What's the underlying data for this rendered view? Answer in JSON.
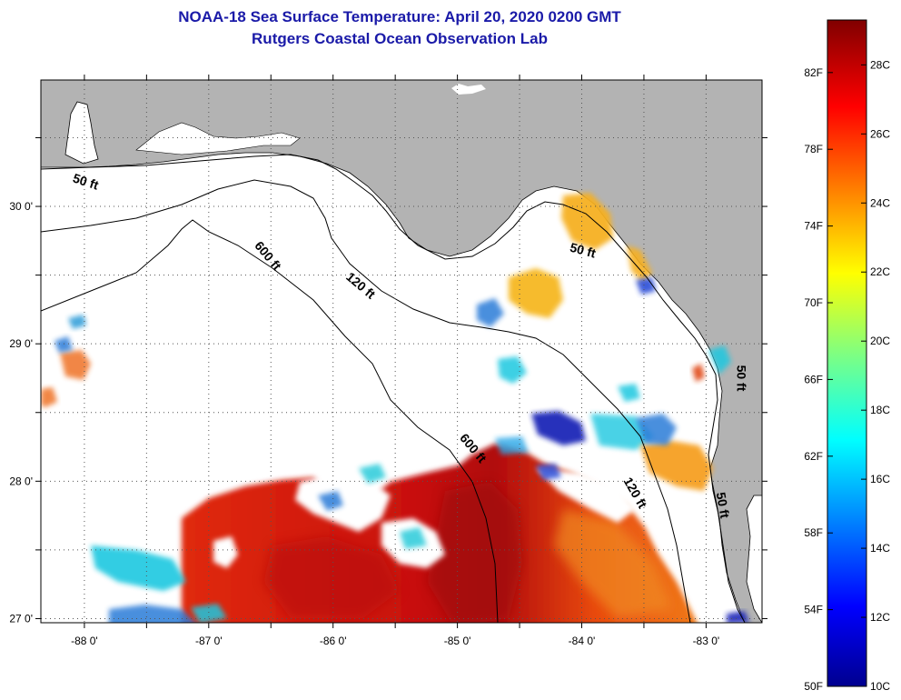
{
  "title": {
    "line1": "NOAA-18 Sea Surface Temperature:  April 20, 2020 0200 GMT",
    "line2": "Rutgers Coastal Ocean Observation Lab"
  },
  "map": {
    "lon_range": [
      -88.35,
      -82.55
    ],
    "lat_range": [
      26.97,
      30.92
    ],
    "lon_ticks": [
      {
        "value": -88,
        "label": "-88 0'"
      },
      {
        "value": -87,
        "label": "-87 0'"
      },
      {
        "value": -86,
        "label": "-86 0'"
      },
      {
        "value": -85,
        "label": "-85 0'"
      },
      {
        "value": -84,
        "label": "-84 0'"
      },
      {
        "value": -83,
        "label": "-83 0'"
      }
    ],
    "lat_ticks": [
      {
        "value": 30,
        "label": "30 0'"
      },
      {
        "value": 29,
        "label": "29 0'"
      },
      {
        "value": 28,
        "label": "28 0'"
      },
      {
        "value": 27,
        "label": "27 0'"
      }
    ],
    "contour_labels": [
      {
        "text": "50 ft",
        "lon": -88.0,
        "lat": 30.15
      },
      {
        "text": "600 ft",
        "lon": -86.55,
        "lat": 29.62
      },
      {
        "text": "120 ft",
        "lon": -85.8,
        "lat": 29.4
      },
      {
        "text": "50 ft",
        "lon": -84.0,
        "lat": 29.65
      },
      {
        "text": "600 ft",
        "lon": -84.9,
        "lat": 28.22
      },
      {
        "text": "120 ft",
        "lon": -83.6,
        "lat": 27.9
      },
      {
        "text": "50 ft",
        "lon": -82.9,
        "lat": 27.82
      },
      {
        "text": "50 ft",
        "lon": -82.75,
        "lat": 28.75
      }
    ],
    "colors": {
      "land": "#b3b3b3",
      "water_nodata": "#ffffff",
      "contour": "#000000",
      "grid": "#555555"
    }
  },
  "colorbar": {
    "celsius_range": [
      10,
      29.3
    ],
    "fahrenheit_labels": [
      "82F",
      "78F",
      "74F",
      "70F",
      "66F",
      "62F",
      "58F",
      "54F",
      "50F"
    ],
    "fahrenheit_values": [
      82,
      78,
      74,
      70,
      66,
      62,
      58,
      54,
      50
    ],
    "celsius_labels": [
      "28C",
      "26C",
      "24C",
      "22C",
      "20C",
      "18C",
      "16C",
      "14C",
      "12C",
      "10C"
    ],
    "celsius_values": [
      28,
      26,
      24,
      22,
      20,
      18,
      16,
      14,
      12,
      10
    ]
  }
}
